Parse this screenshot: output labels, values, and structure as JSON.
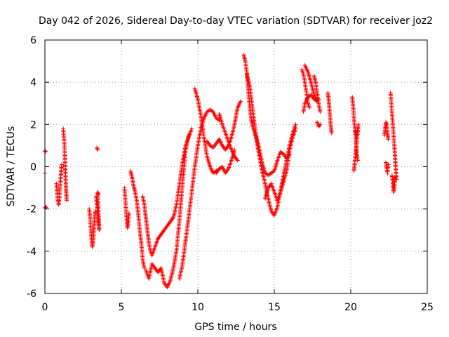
{
  "chart_data": {
    "type": "scatter",
    "title": "Day 042 of 2026, Sidereal Day-to-day VTEC variation (SDTVAR) for receiver joz2",
    "xlabel": "GPS time / hours",
    "ylabel": "SDTVAR / TECUs",
    "xlim": [
      0,
      25
    ],
    "ylim": [
      -6,
      6
    ],
    "xticks": [
      0,
      5,
      10,
      15,
      20,
      25
    ],
    "yticks": [
      -6,
      -4,
      -2,
      0,
      2,
      4,
      6
    ],
    "grid": true,
    "marker": "+",
    "color": "#ff0000",
    "series": [
      {
        "name": "SDTVAR",
        "tracks": [
          [
            [
              0.0,
              0.75
            ],
            [
              0.05,
              0.72
            ]
          ],
          [
            [
              0.0,
              -0.3
            ]
          ],
          [
            [
              0.0,
              -1.95
            ],
            [
              0.08,
              -1.9
            ]
          ],
          [
            [
              0.75,
              -0.8
            ],
            [
              0.8,
              -1.2
            ],
            [
              0.85,
              -1.6
            ],
            [
              0.9,
              -1.8
            ],
            [
              0.95,
              -1.4
            ],
            [
              1.0,
              -0.9
            ],
            [
              1.05,
              -0.3
            ],
            [
              1.1,
              0.1
            ]
          ],
          [
            [
              1.2,
              1.8
            ],
            [
              1.25,
              1.3
            ],
            [
              1.3,
              0.6
            ],
            [
              1.32,
              0.2
            ],
            [
              1.35,
              -0.4
            ],
            [
              1.38,
              -1.0
            ],
            [
              1.4,
              -1.3
            ],
            [
              1.42,
              -1.6
            ]
          ],
          [
            [
              3.4,
              0.9
            ],
            [
              3.45,
              0.8
            ]
          ],
          [
            [
              2.9,
              -2.0
            ],
            [
              2.95,
              -2.4
            ],
            [
              3.0,
              -2.9
            ],
            [
              3.05,
              -3.4
            ],
            [
              3.1,
              -3.8
            ],
            [
              3.15,
              -3.6
            ],
            [
              3.2,
              -3.0
            ],
            [
              3.25,
              -2.4
            ],
            [
              3.3,
              -2.1
            ]
          ],
          [
            [
              3.35,
              -1.4
            ],
            [
              3.4,
              -1.8
            ],
            [
              3.45,
              -2.2
            ],
            [
              3.5,
              -2.6
            ],
            [
              3.55,
              -3.0
            ],
            [
              3.45,
              -1.2
            ],
            [
              3.5,
              -1.3
            ]
          ],
          [
            [
              5.2,
              -1.0
            ],
            [
              5.25,
              -1.5
            ],
            [
              5.3,
              -2.0
            ],
            [
              5.35,
              -2.5
            ],
            [
              5.4,
              -2.9
            ],
            [
              5.45,
              -2.6
            ],
            [
              5.5,
              -2.2
            ]
          ],
          [
            [
              5.6,
              -0.2
            ],
            [
              5.7,
              -0.5
            ],
            [
              5.8,
              -0.9
            ],
            [
              5.9,
              -1.2
            ],
            [
              6.0,
              -1.6
            ],
            [
              6.1,
              -2.2
            ],
            [
              6.2,
              -3.0
            ],
            [
              6.3,
              -3.6
            ],
            [
              6.4,
              -4.4
            ],
            [
              6.5,
              -4.8
            ]
          ],
          [
            [
              6.4,
              -1.4
            ],
            [
              6.5,
              -1.8
            ],
            [
              6.6,
              -2.4
            ],
            [
              6.7,
              -3.0
            ],
            [
              6.8,
              -3.6
            ],
            [
              6.9,
              -4.0
            ],
            [
              7.0,
              -4.2
            ],
            [
              7.1,
              -4.0
            ],
            [
              7.2,
              -3.8
            ],
            [
              7.3,
              -3.6
            ],
            [
              7.4,
              -3.4
            ]
          ],
          [
            [
              6.6,
              -4.9
            ],
            [
              6.8,
              -5.3
            ],
            [
              7.0,
              -4.6
            ],
            [
              7.2,
              -4.8
            ],
            [
              7.4,
              -5.0
            ],
            [
              7.6,
              -4.8
            ],
            [
              7.8,
              -5.5
            ],
            [
              8.0,
              -5.7
            ],
            [
              8.2,
              -5.4
            ],
            [
              8.4,
              -4.8
            ],
            [
              8.6,
              -4.0
            ],
            [
              8.8,
              -2.5
            ],
            [
              9.0,
              -0.8
            ],
            [
              9.2,
              0.8
            ],
            [
              9.4,
              1.5
            ]
          ],
          [
            [
              7.4,
              -3.4
            ],
            [
              7.6,
              -3.2
            ],
            [
              7.8,
              -3.0
            ],
            [
              8.0,
              -2.8
            ],
            [
              8.2,
              -2.6
            ],
            [
              8.4,
              -2.4
            ],
            [
              8.6,
              -1.8
            ],
            [
              8.8,
              -0.8
            ],
            [
              9.0,
              0.2
            ],
            [
              9.2,
              1.0
            ],
            [
              9.4,
              1.4
            ],
            [
              9.6,
              1.8
            ]
          ],
          [
            [
              8.8,
              -5.3
            ],
            [
              9.0,
              -4.6
            ],
            [
              9.2,
              -3.5
            ],
            [
              9.4,
              -2.4
            ],
            [
              9.6,
              -1.2
            ],
            [
              9.8,
              0.0
            ],
            [
              10.0,
              1.0
            ],
            [
              10.2,
              1.8
            ],
            [
              10.4,
              2.3
            ],
            [
              10.6,
              2.6
            ],
            [
              10.8,
              2.7
            ],
            [
              11.0,
              2.6
            ],
            [
              11.2,
              2.3
            ],
            [
              11.4,
              2.2
            ]
          ],
          [
            [
              9.8,
              3.7
            ],
            [
              10.0,
              3.2
            ],
            [
              10.2,
              2.4
            ],
            [
              10.4,
              1.4
            ],
            [
              10.6,
              0.5
            ],
            [
              10.8,
              0.0
            ],
            [
              11.0,
              -0.3
            ],
            [
              11.2,
              -0.2
            ],
            [
              11.4,
              -0.1
            ]
          ],
          [
            [
              10.6,
              1.2
            ],
            [
              10.8,
              1.0
            ],
            [
              11.0,
              0.9
            ],
            [
              11.2,
              1.1
            ],
            [
              11.4,
              1.3
            ],
            [
              11.6,
              1.0
            ],
            [
              11.8,
              0.8
            ],
            [
              12.0,
              1.0
            ],
            [
              12.2,
              1.4
            ],
            [
              12.4,
              2.0
            ],
            [
              12.6,
              2.8
            ],
            [
              12.8,
              3.1
            ]
          ],
          [
            [
              11.4,
              2.5
            ],
            [
              11.6,
              2.0
            ],
            [
              11.8,
              1.6
            ],
            [
              12.0,
              1.2
            ],
            [
              12.2,
              0.8
            ],
            [
              12.4,
              0.5
            ],
            [
              12.6,
              0.3
            ]
          ],
          [
            [
              11.2,
              -0.3
            ],
            [
              11.4,
              -0.1
            ],
            [
              11.6,
              0.0
            ],
            [
              11.8,
              -0.3
            ],
            [
              12.0,
              -0.1
            ],
            [
              12.2,
              0.3
            ],
            [
              12.4,
              0.8
            ]
          ],
          [
            [
              13.0,
              5.3
            ],
            [
              13.1,
              5.0
            ],
            [
              13.2,
              4.5
            ],
            [
              13.3,
              3.6
            ],
            [
              13.4,
              2.8
            ],
            [
              13.5,
              2.2
            ],
            [
              13.6,
              1.9
            ],
            [
              13.8,
              1.4
            ],
            [
              14.0,
              0.6
            ],
            [
              14.2,
              -0.2
            ],
            [
              14.4,
              -0.8
            ],
            [
              14.6,
              -1.5
            ],
            [
              14.8,
              -2.1
            ],
            [
              15.0,
              -2.3
            ],
            [
              15.2,
              -1.9
            ],
            [
              15.4,
              -1.2
            ],
            [
              15.6,
              -0.4
            ],
            [
              15.8,
              0.3
            ],
            [
              16.0,
              1.0
            ],
            [
              16.2,
              1.6
            ],
            [
              16.4,
              2.0
            ]
          ],
          [
            [
              13.2,
              4.4
            ],
            [
              13.4,
              3.8
            ],
            [
              13.6,
              2.6
            ],
            [
              13.8,
              1.5
            ],
            [
              14.0,
              0.9
            ],
            [
              14.2,
              0.2
            ],
            [
              14.4,
              -0.3
            ],
            [
              14.6,
              -0.4
            ],
            [
              14.8,
              -0.3
            ],
            [
              15.0,
              -0.2
            ],
            [
              15.2,
              0.3
            ],
            [
              15.4,
              0.7
            ],
            [
              15.6,
              0.6
            ],
            [
              15.8,
              0.4
            ],
            [
              16.0,
              0.6
            ]
          ],
          [
            [
              14.4,
              -1.5
            ],
            [
              14.6,
              -1.0
            ],
            [
              14.8,
              -0.8
            ],
            [
              15.0,
              -1.2
            ],
            [
              15.2,
              -1.6
            ],
            [
              15.4,
              -1.2
            ],
            [
              15.6,
              -0.7
            ],
            [
              15.8,
              -0.2
            ],
            [
              16.0,
              0.8
            ],
            [
              16.2,
              1.4
            ],
            [
              16.4,
              1.8
            ]
          ],
          [
            [
              16.8,
              4.6
            ],
            [
              16.9,
              4.4
            ],
            [
              17.0,
              4.0
            ],
            [
              17.1,
              3.5
            ],
            [
              17.2,
              3.0
            ],
            [
              17.3,
              2.8
            ]
          ],
          [
            [
              17.0,
              4.8
            ],
            [
              17.2,
              4.5
            ],
            [
              17.4,
              4.0
            ],
            [
              17.6,
              3.4
            ],
            [
              17.8,
              3.1
            ],
            [
              17.9,
              3.2
            ]
          ],
          [
            [
              16.9,
              2.6
            ],
            [
              17.0,
              3.0
            ],
            [
              17.2,
              3.3
            ],
            [
              17.4,
              3.4
            ],
            [
              17.6,
              3.2
            ],
            [
              17.8,
              3.1
            ]
          ],
          [
            [
              17.6,
              4.3
            ],
            [
              17.7,
              4.0
            ],
            [
              17.8,
              3.5
            ],
            [
              17.9,
              3.0
            ],
            [
              18.0,
              2.6
            ]
          ],
          [
            [
              17.8,
              2.1
            ],
            [
              17.9,
              1.9
            ],
            [
              18.0,
              2.0
            ]
          ],
          [
            [
              18.5,
              3.5
            ],
            [
              18.55,
              3.2
            ],
            [
              18.6,
              2.8
            ],
            [
              18.65,
              2.3
            ],
            [
              18.7,
              1.9
            ],
            [
              18.75,
              1.6
            ]
          ],
          [
            [
              20.1,
              3.3
            ],
            [
              20.15,
              2.9
            ],
            [
              20.2,
              2.4
            ],
            [
              20.25,
              2.0
            ],
            [
              20.3,
              1.6
            ],
            [
              20.35,
              1.1
            ],
            [
              20.4,
              0.6
            ],
            [
              20.45,
              0.3
            ]
          ],
          [
            [
              20.2,
              -0.2
            ],
            [
              20.25,
              0.1
            ],
            [
              20.3,
              0.5
            ],
            [
              20.35,
              0.9
            ],
            [
              20.4,
              1.4
            ],
            [
              20.45,
              1.8
            ],
            [
              20.5,
              2.0
            ]
          ],
          [
            [
              20.3,
              1.7
            ],
            [
              20.4,
              1.4
            ],
            [
              20.5,
              1.8
            ]
          ],
          [
            [
              22.2,
              1.5
            ],
            [
              22.25,
              1.8
            ],
            [
              22.3,
              2.1
            ],
            [
              22.35,
              2.0
            ],
            [
              22.4,
              1.6
            ],
            [
              22.45,
              1.3
            ]
          ],
          [
            [
              22.3,
              0.2
            ],
            [
              22.35,
              -0.1
            ],
            [
              22.4,
              -0.3
            ],
            [
              22.45,
              0.1
            ]
          ],
          [
            [
              22.6,
              3.5
            ],
            [
              22.65,
              3.0
            ],
            [
              22.7,
              2.5
            ],
            [
              22.75,
              2.0
            ],
            [
              22.8,
              1.5
            ],
            [
              22.85,
              1.0
            ],
            [
              22.9,
              0.4
            ],
            [
              22.95,
              -0.2
            ],
            [
              23.0,
              -0.6
            ]
          ],
          [
            [
              22.7,
              -0.4
            ],
            [
              22.75,
              -0.8
            ],
            [
              22.8,
              -1.2
            ],
            [
              22.85,
              -0.9
            ],
            [
              22.9,
              -0.5
            ]
          ]
        ]
      }
    ]
  }
}
